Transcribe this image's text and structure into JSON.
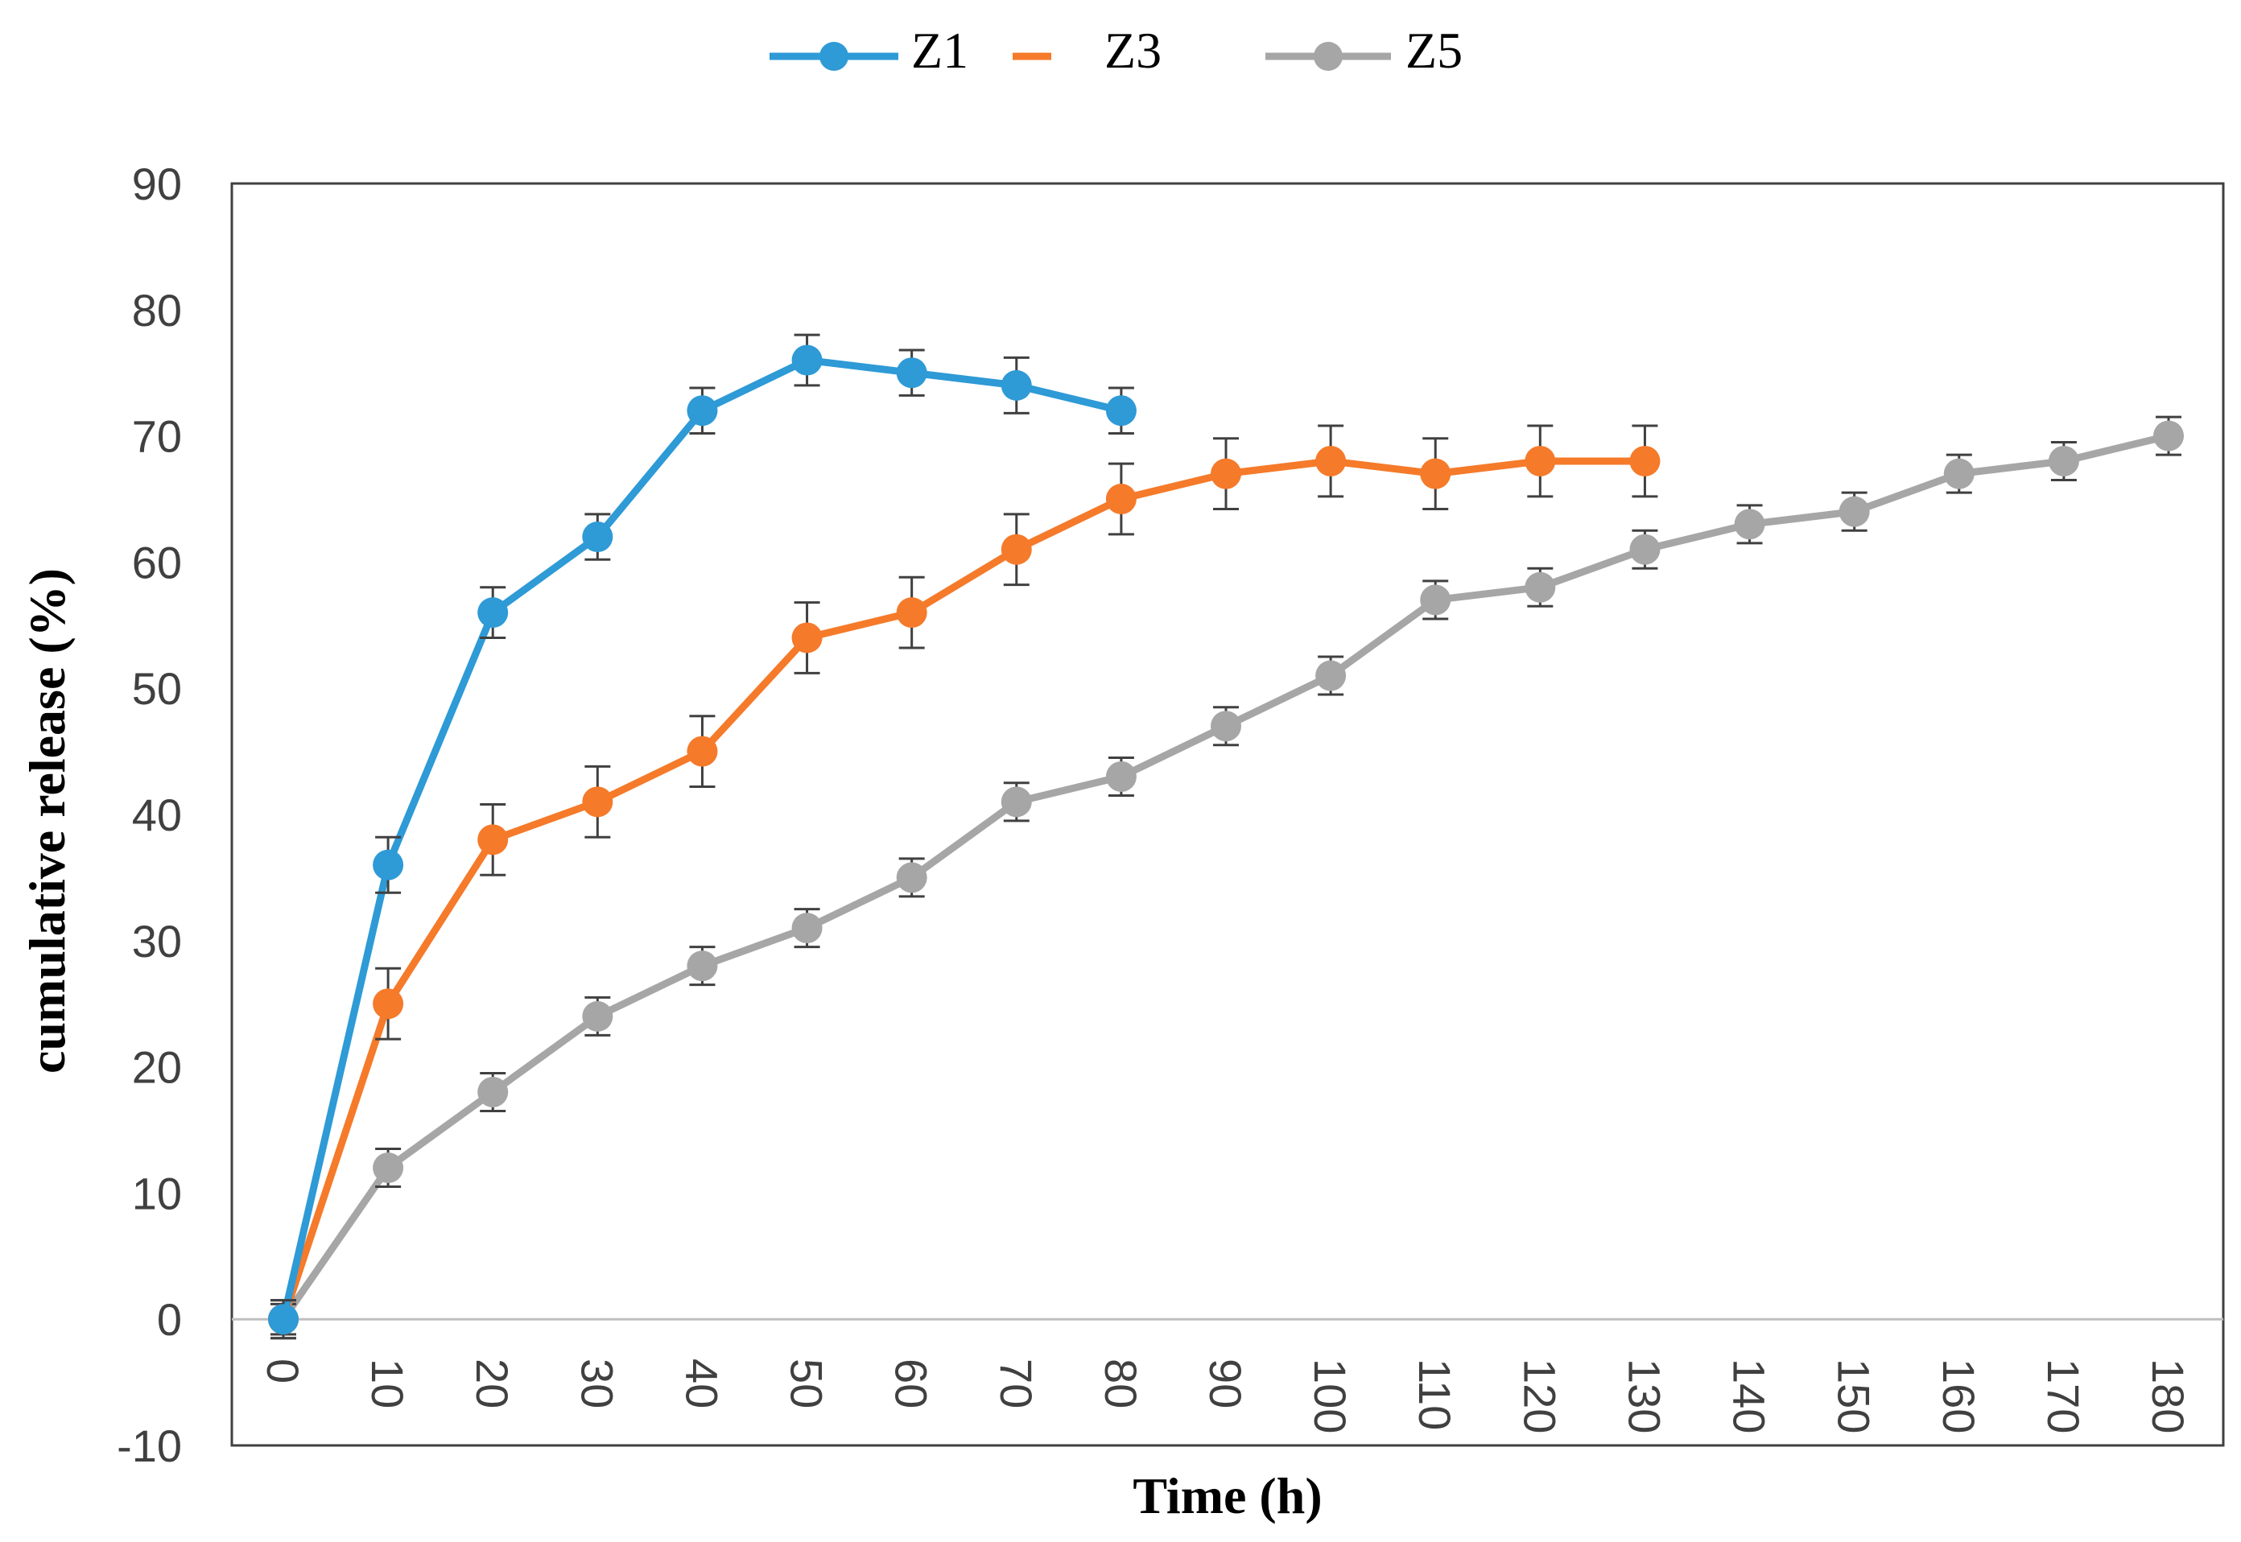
{
  "chart_data": {
    "type": "line",
    "title": "",
    "xlabel": "Time (h)",
    "ylabel": "cumulative release (%)",
    "ylim": [
      -10,
      90
    ],
    "yticks": [
      -10,
      0,
      10,
      20,
      30,
      40,
      50,
      60,
      70,
      80,
      90
    ],
    "xticks": [
      "0",
      "10",
      "20",
      "30",
      "40",
      "50",
      "60",
      "70",
      "80",
      "90",
      "100",
      "110",
      "120",
      "130",
      "140",
      "150",
      "160",
      "170",
      "180"
    ],
    "grid": false,
    "legend_position": "top",
    "error_bars": true,
    "series": [
      {
        "name": "Z1",
        "color": "#2E9AD6",
        "x": [
          0,
          10,
          20,
          30,
          40,
          50,
          60,
          70,
          80
        ],
        "y": [
          0,
          36,
          56,
          62,
          72,
          76,
          75,
          74,
          72
        ],
        "err": [
          1.5,
          2.2,
          2.0,
          1.8,
          1.8,
          2.0,
          1.8,
          2.2,
          1.8
        ]
      },
      {
        "name": "Z3",
        "color": "#F57A2A",
        "x": [
          0,
          10,
          20,
          30,
          40,
          50,
          60,
          70,
          80,
          90,
          100,
          110,
          120,
          130
        ],
        "y": [
          0,
          25,
          38,
          41,
          45,
          54,
          56,
          61,
          65,
          67,
          68,
          67,
          68,
          68
        ],
        "err": [
          1.5,
          2.8,
          2.8,
          2.8,
          2.8,
          2.8,
          2.8,
          2.8,
          2.8,
          2.8,
          2.8,
          2.8,
          2.8,
          2.8
        ]
      },
      {
        "name": "Z5",
        "color": "#A6A6A6",
        "x": [
          0,
          10,
          20,
          30,
          40,
          50,
          60,
          70,
          80,
          90,
          100,
          110,
          120,
          130,
          140,
          150,
          160,
          170,
          180
        ],
        "y": [
          0,
          12,
          18,
          24,
          28,
          31,
          35,
          41,
          43,
          47,
          51,
          57,
          58,
          61,
          63,
          64,
          67,
          68,
          70
        ],
        "err": [
          1.2,
          1.5,
          1.5,
          1.5,
          1.5,
          1.5,
          1.5,
          1.5,
          1.5,
          1.5,
          1.5,
          1.5,
          1.5,
          1.5,
          1.5,
          1.5,
          1.5,
          1.5,
          1.5
        ]
      }
    ]
  }
}
